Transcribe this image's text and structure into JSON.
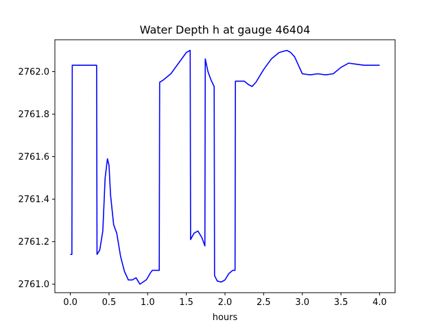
{
  "chart_data": {
    "type": "line",
    "title": "Water Depth h at gauge 46404",
    "xlabel": "hours",
    "ylabel": "",
    "xlim": [
      -0.2,
      4.2
    ],
    "ylim": [
      2760.96,
      2762.15
    ],
    "xticks": [
      0.0,
      0.5,
      1.0,
      1.5,
      2.0,
      2.5,
      3.0,
      3.5,
      4.0
    ],
    "xtick_labels": [
      "0.0",
      "0.5",
      "1.0",
      "1.5",
      "2.0",
      "2.5",
      "3.0",
      "3.5",
      "4.0"
    ],
    "yticks": [
      2761.0,
      2761.2,
      2761.4,
      2761.6,
      2761.8,
      2762.0
    ],
    "ytick_labels": [
      "2761.0",
      "2761.2",
      "2761.4",
      "2761.6",
      "2761.8",
      "2762.0"
    ],
    "grid": false,
    "series": [
      {
        "color": "#0000ff",
        "x": [
          0.0,
          0.02,
          0.025,
          0.05,
          0.1,
          0.2,
          0.3,
          0.34,
          0.345,
          0.38,
          0.42,
          0.45,
          0.48,
          0.5,
          0.52,
          0.56,
          0.6,
          0.65,
          0.7,
          0.75,
          0.8,
          0.85,
          0.9,
          0.94,
          0.98,
          1.0,
          1.03,
          1.06,
          1.1,
          1.15,
          1.155,
          1.2,
          1.3,
          1.4,
          1.5,
          1.55,
          1.555,
          1.6,
          1.65,
          1.7,
          1.74,
          1.745,
          1.78,
          1.82,
          1.86,
          1.865,
          1.9,
          1.95,
          2.0,
          2.05,
          2.1,
          2.13,
          2.135,
          2.2,
          2.25,
          2.3,
          2.35,
          2.4,
          2.5,
          2.6,
          2.7,
          2.8,
          2.85,
          2.9,
          2.95,
          3.0,
          3.1,
          3.2,
          3.3,
          3.4,
          3.5,
          3.6,
          3.7,
          3.8,
          3.9,
          4.0
        ],
        "y": [
          2761.14,
          2761.14,
          2762.03,
          2762.03,
          2762.03,
          2762.03,
          2762.03,
          2762.03,
          2761.14,
          2761.16,
          2761.25,
          2761.5,
          2761.59,
          2761.56,
          2761.42,
          2761.28,
          2761.24,
          2761.13,
          2761.06,
          2761.02,
          2761.02,
          2761.03,
          2761.0,
          2761.01,
          2761.02,
          2761.03,
          2761.05,
          2761.065,
          2761.065,
          2761.065,
          2761.95,
          2761.96,
          2761.99,
          2762.04,
          2762.09,
          2762.1,
          2761.21,
          2761.24,
          2761.25,
          2761.22,
          2761.18,
          2762.06,
          2762.0,
          2761.96,
          2761.93,
          2761.04,
          2761.015,
          2761.01,
          2761.02,
          2761.05,
          2761.065,
          2761.065,
          2761.955,
          2761.955,
          2761.955,
          2761.94,
          2761.93,
          2761.95,
          2762.01,
          2762.06,
          2762.09,
          2762.1,
          2762.09,
          2762.07,
          2762.03,
          2761.99,
          2761.985,
          2761.99,
          2761.985,
          2761.99,
          2762.02,
          2762.04,
          2762.035,
          2762.03,
          2762.03,
          2762.03
        ]
      }
    ]
  }
}
